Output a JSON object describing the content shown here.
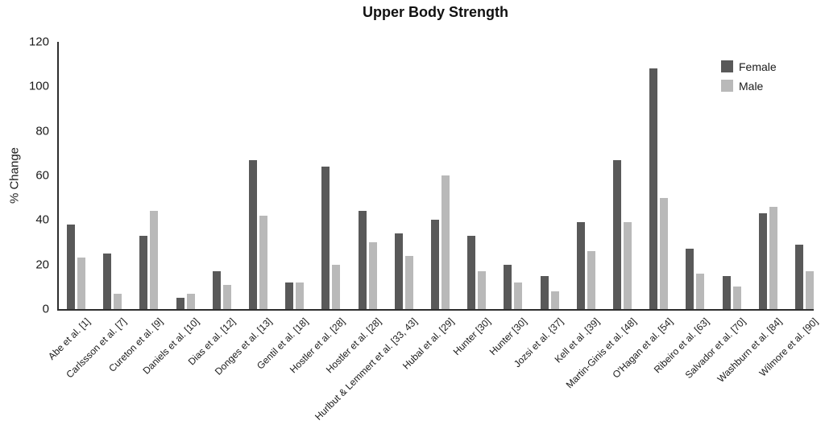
{
  "title": "Upper Body Strength",
  "legend": {
    "female_label": "Female",
    "male_label": "Male"
  },
  "colors": {
    "female_bar": "#595959",
    "male_bar": "#b9b9b9",
    "axis": "#2e2e2e",
    "text": "#1a1a1a"
  },
  "chart_data": {
    "type": "bar",
    "title": "Upper Body Strength",
    "xlabel": "",
    "ylabel": "% Change",
    "ylim": [
      0,
      120
    ],
    "yticks": [
      0,
      20,
      40,
      60,
      80,
      100,
      120
    ],
    "grid": false,
    "legend_position": "top-right",
    "categories": [
      "Abe et al. [1]",
      "Carlssson et al. [7]",
      "Cureton et al. [9]",
      "Daniels et al. [10]",
      "Dias et al. [12]",
      "Donges et al. [13]",
      "Gentil et al. [18]",
      "Hostler et al. [28]",
      "Hostler et al. [28]",
      "Hurlbut & Lemmert et al. [33, 43]",
      "Hubal et al. [29]",
      "Hunter [30]",
      "Hunter [30]",
      "Jozsi et al. {37]",
      "Kell et al .[39]",
      "Martin-Ginis et al. [48]",
      "O'Hagan et al. [54]",
      "Ribeiro et al. [63]",
      "Salvador et al. [70]",
      "Washburn et al. [84]",
      "Wilmore et al. [90]"
    ],
    "series": [
      {
        "name": "Female",
        "color": "#595959",
        "values": [
          38,
          25,
          33,
          5,
          17,
          67,
          12,
          64,
          44,
          34,
          40,
          33,
          20,
          15,
          39,
          67,
          108,
          27,
          15,
          43,
          29
        ]
      },
      {
        "name": "Male",
        "color": "#b9b9b9",
        "values": [
          23,
          7,
          44,
          7,
          11,
          42,
          12,
          20,
          30,
          24,
          60,
          17,
          12,
          8,
          26,
          39,
          50,
          16,
          10,
          46,
          17
        ]
      }
    ]
  }
}
